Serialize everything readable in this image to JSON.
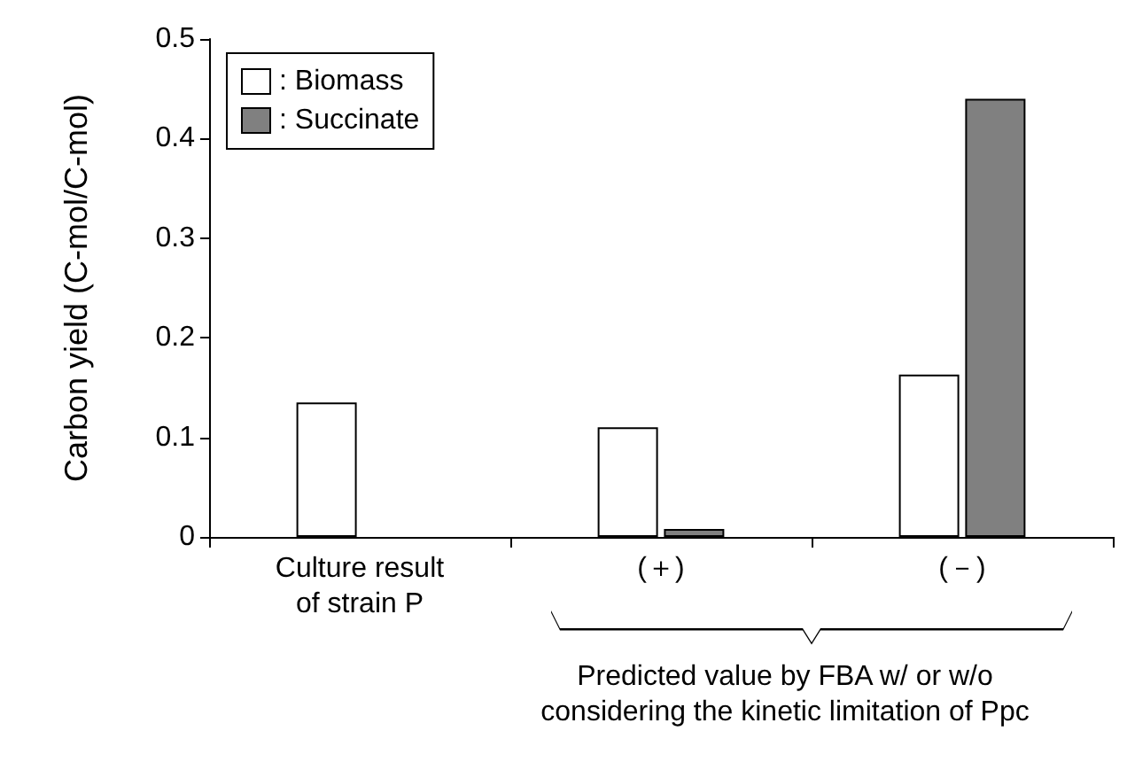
{
  "chart_data": {
    "type": "bar",
    "ylabel": "Carbon yield (C-mol/C-mol)",
    "categories": [
      "Culture result\nof strain P",
      "(＋)",
      "(－)"
    ],
    "series": [
      {
        "name": ": Biomass",
        "color": "#ffffff",
        "values": [
          0.135,
          0.11,
          0.163
        ]
      },
      {
        "name": ": Succinate",
        "color": "#808080",
        "values": [
          null,
          0.008,
          0.44
        ]
      }
    ],
    "ylim": [
      0,
      0.5
    ],
    "yticks": [
      0,
      0.1,
      0.2,
      0.3,
      0.4,
      0.5
    ],
    "grid": false,
    "legend": "top left",
    "annotations": [
      "Predicted value by FBA w/ or w/o\nconsidering the kinetic limitation of Ppc"
    ]
  }
}
